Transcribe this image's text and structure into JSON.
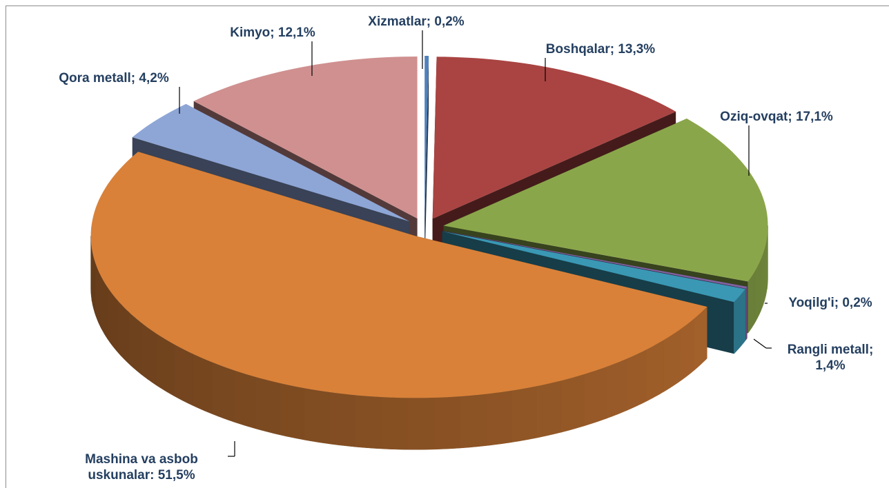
{
  "chart_data": {
    "type": "pie",
    "3d": true,
    "exploded": true,
    "categories": [
      "Xizmatlar; 0,2%",
      "Boshqalar; 13,3%",
      "Oziq-ovqat; 17,1%",
      "Yoqilg'i; 0,2%",
      "Rangli metall; 1,4%",
      "Mashina va asbob uskunalar: 51,5%",
      "Qora metall; 4,2%",
      "Kimyo; 12,1%"
    ],
    "values": [
      0.2,
      13.3,
      17.1,
      0.2,
      1.4,
      51.5,
      4.2,
      12.1
    ],
    "colors": [
      "#4f81bd",
      "#a94442",
      "#8aa64a",
      "#7f62a0",
      "#3a98b4",
      "#d98139",
      "#8ea6d6",
      "#d09090"
    ]
  }
}
